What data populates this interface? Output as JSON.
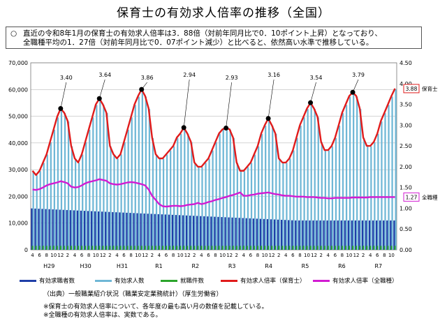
{
  "title": "保育士の有効求人倍率の推移（全国）",
  "summary": {
    "bullet": "○",
    "line1": "直近の令和8年1月の保育士の有効求人倍率は3．88倍（対前年同月比で0．10ポイント上昇）となっており、",
    "line2": "全職種平均の1．27倍（対前年同月比で0．07ポイント減少）と比べると、依然高い水準で推移している。"
  },
  "legend": {
    "job_seekers": "有効求職者数",
    "job_offers": "有効求人数",
    "employed": "就職件数",
    "ratio_nursery": "有効求人倍率（保育士）",
    "ratio_all": "有効求人倍率（全職種）"
  },
  "source": "（出典）一般職業紹介状況（職業安定業務統計）（厚生労働省）",
  "notes": [
    "※保育士の有効求人倍率について、各年度の最も高い月の数値を記載している。",
    "※全職種の有効求人倍率は、実数である。"
  ],
  "colors": {
    "job_seekers": "#1f3fa8",
    "job_offers": "#6fb7d6",
    "employed": "#2ca52c",
    "ratio_nursery": "#e01b1b",
    "ratio_all": "#d21bd2"
  },
  "chart_data": {
    "type": "bar+line",
    "x_month_labels": [
      "4",
      "6",
      "8",
      "10",
      "12",
      "2"
    ],
    "fiscal_years": [
      "H29",
      "H30",
      "H31",
      "R1",
      "R2",
      "R3",
      "R4",
      "R5",
      "R6",
      "R7"
    ],
    "left_axis": {
      "min": 0,
      "max": 70000,
      "ticks": [
        "0",
        "10,000",
        "20,000",
        "30,000",
        "40,000",
        "50,000",
        "60,000",
        "70,000"
      ]
    },
    "right_axis": {
      "min": 0,
      "max": 4.5,
      "ticks": [
        "0.00",
        "0.50",
        "1.00",
        "1.50",
        "2.00",
        "2.50",
        "3.00",
        "3.50",
        "4.00",
        "4.50"
      ]
    },
    "peak_annotations": [
      "3.40",
      "3.64",
      "3.86",
      "2.94",
      "2.93",
      "3.16",
      "3.54",
      "3.79"
    ],
    "end_labels": {
      "nursery_value": "3.88",
      "nursery_name": "保育士",
      "all_value": "1.27",
      "all_name": "全職種"
    },
    "series_nursery": [
      1.9,
      1.8,
      1.9,
      2.1,
      2.3,
      2.6,
      2.9,
      3.2,
      3.4,
      3.3,
      3.1,
      2.5,
      2.2,
      2.1,
      2.3,
      2.6,
      2.9,
      3.2,
      3.5,
      3.64,
      3.5,
      3.3,
      2.5,
      2.3,
      2.2,
      2.3,
      2.6,
      2.9,
      3.2,
      3.5,
      3.7,
      3.86,
      3.7,
      3.4,
      2.7,
      2.3,
      2.2,
      2.2,
      2.3,
      2.4,
      2.5,
      2.7,
      2.8,
      2.94,
      2.8,
      2.6,
      2.1,
      2.0,
      2.0,
      2.1,
      2.2,
      2.4,
      2.6,
      2.8,
      2.9,
      2.93,
      2.9,
      2.7,
      2.1,
      1.9,
      1.9,
      2.0,
      2.1,
      2.3,
      2.5,
      2.8,
      3.0,
      3.16,
      3.0,
      2.8,
      2.2,
      2.1,
      2.1,
      2.2,
      2.4,
      2.7,
      3.0,
      3.2,
      3.4,
      3.54,
      3.4,
      3.2,
      2.6,
      2.4,
      2.4,
      2.5,
      2.7,
      3.0,
      3.3,
      3.5,
      3.7,
      3.79,
      3.7,
      3.4,
      2.7,
      2.5,
      2.5,
      2.6,
      2.8,
      3.1,
      3.3,
      3.5,
      3.7,
      3.88
    ],
    "series_all": [
      1.45,
      1.44,
      1.46,
      1.5,
      1.55,
      1.58,
      1.6,
      1.62,
      1.65,
      1.63,
      1.6,
      1.52,
      1.5,
      1.51,
      1.55,
      1.6,
      1.63,
      1.65,
      1.67,
      1.7,
      1.68,
      1.66,
      1.6,
      1.58,
      1.57,
      1.58,
      1.6,
      1.62,
      1.63,
      1.62,
      1.6,
      1.58,
      1.55,
      1.45,
      1.3,
      1.2,
      1.1,
      1.05,
      1.04,
      1.05,
      1.06,
      1.06,
      1.05,
      1.06,
      1.08,
      1.09,
      1.1,
      1.13,
      1.1,
      1.12,
      1.15,
      1.17,
      1.2,
      1.22,
      1.25,
      1.27,
      1.3,
      1.32,
      1.35,
      1.38,
      1.3,
      1.3,
      1.32,
      1.33,
      1.35,
      1.36,
      1.37,
      1.38,
      1.36,
      1.34,
      1.33,
      1.31,
      1.3,
      1.3,
      1.29,
      1.28,
      1.28,
      1.28,
      1.27,
      1.27,
      1.27,
      1.26,
      1.25,
      1.25,
      1.24,
      1.24,
      1.25,
      1.25,
      1.25,
      1.25,
      1.25,
      1.26,
      1.26,
      1.26,
      1.26,
      1.26,
      1.27,
      1.27,
      1.27,
      1.27,
      1.27,
      1.27,
      1.27,
      1.27
    ]
  }
}
